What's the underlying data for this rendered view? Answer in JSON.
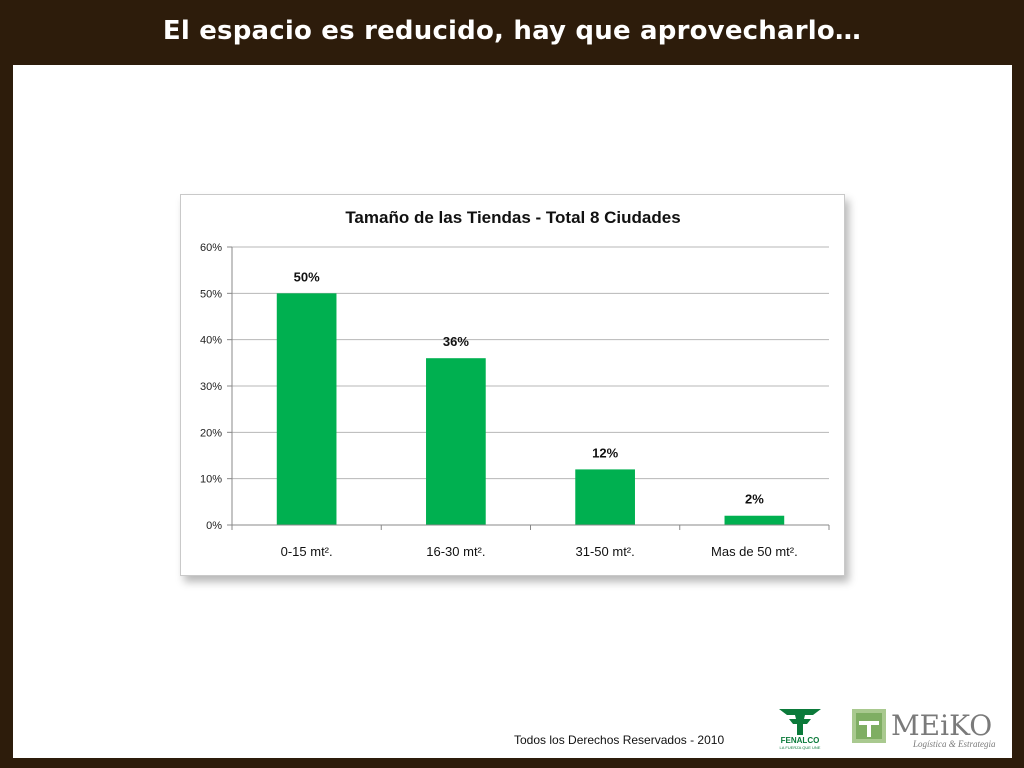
{
  "slide": {
    "title": "El espacio es reducido, hay que aprovecharlo…",
    "footer": "Todos los Derechos Reservados - 2010"
  },
  "logos": {
    "fenalco": {
      "name": "FENALCO",
      "tagline": "LA FUERZA QUE UNE"
    },
    "meiko": {
      "name": "MEiKO",
      "tagline": "Logística & Estrategia"
    }
  },
  "colors": {
    "title_bar": "#2d1c0b",
    "bar": "#00b050",
    "grid": "#b7b7b7"
  },
  "chart_data": {
    "type": "bar",
    "title": "Tamaño de las Tiendas - Total 8 Ciudades",
    "categories": [
      "0-15 mt².",
      "16-30 mt².",
      "31-50 mt².",
      "Mas de 50 mt²."
    ],
    "values": [
      50,
      36,
      12,
      2
    ],
    "data_labels": [
      "50%",
      "36%",
      "12%",
      "2%"
    ],
    "ylim": [
      0,
      60
    ],
    "yticks": [
      0,
      10,
      20,
      30,
      40,
      50,
      60
    ],
    "ytick_labels": [
      "0%",
      "10%",
      "20%",
      "30%",
      "40%",
      "50%",
      "60%"
    ],
    "grid": true,
    "legend": "none",
    "bar_color": "#00b050"
  }
}
